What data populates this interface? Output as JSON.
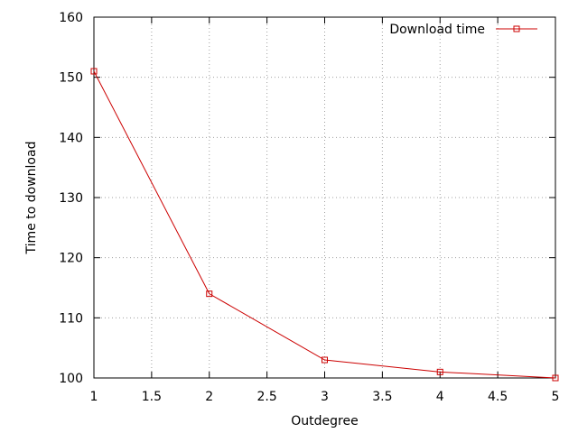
{
  "chart_data": {
    "type": "line",
    "title": "",
    "xlabel": "Outdegree",
    "ylabel": "Time to download",
    "xlim": [
      1,
      5
    ],
    "ylim": [
      100,
      160
    ],
    "x_ticks": [
      "1",
      "1.5",
      "2",
      "2.5",
      "3",
      "3.5",
      "4",
      "4.5",
      "5"
    ],
    "y_ticks": [
      "100",
      "110",
      "120",
      "130",
      "140",
      "150",
      "160"
    ],
    "grid": true,
    "legend_position": "top-right",
    "series": [
      {
        "name": "Download time",
        "color": "#cc0000",
        "marker": "open-square",
        "x": [
          1,
          2,
          3,
          4,
          5
        ],
        "y": [
          151,
          114,
          103,
          101,
          100
        ]
      }
    ]
  }
}
